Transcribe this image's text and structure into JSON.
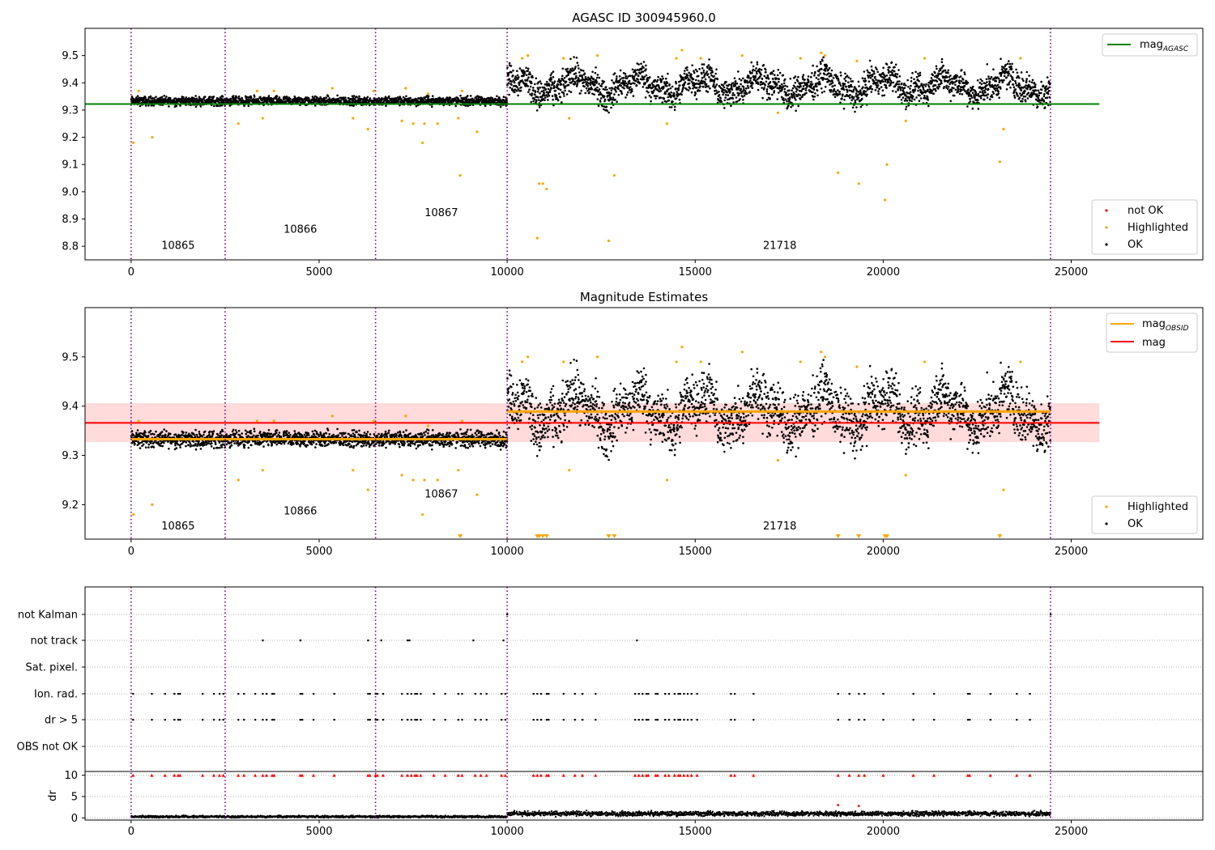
{
  "colors": {
    "ok": "#000000",
    "highlighted": "#ffa500",
    "not_ok": "#ff0000",
    "mag_agasc": "#008000",
    "mag_obsid": "#ffa500",
    "mag": "#ff0000",
    "mag_band": "#ffcccc",
    "obs_boundary": "#800080",
    "grid": "#b0b0b0"
  },
  "chart_data": [
    {
      "type": "scatter",
      "title": "AGASC ID 300945960.0",
      "xlim": [
        -1225,
        28500
      ],
      "ylim": [
        8.75,
        9.6
      ],
      "xticks": [
        0,
        5000,
        10000,
        15000,
        20000,
        25000
      ],
      "yticks": [
        8.8,
        8.9,
        9.0,
        9.1,
        9.2,
        9.3,
        9.4,
        9.5
      ],
      "obs_boundaries": [
        0,
        2500,
        6500,
        10000,
        24450
      ],
      "obsids": [
        {
          "label": "10865",
          "x": 1250,
          "y": 8.79
        },
        {
          "label": "10866",
          "x": 4500,
          "y": 8.85
        },
        {
          "label": "10867",
          "x": 8250,
          "y": 8.91
        },
        {
          "label": "21718",
          "x": 17250,
          "y": 8.79
        }
      ],
      "segments": [
        {
          "x0": 0,
          "x1": 10000,
          "base": 9.333,
          "spread": 0.018
        },
        {
          "x0": 10000,
          "x1": 24450,
          "base": 9.39,
          "spread": 0.06
        }
      ],
      "lines": [
        {
          "name": "mag",
          "sub": "AGASC",
          "y": 9.322,
          "x0": -1225,
          "x1": 25750
        }
      ],
      "legend_lines": [
        {
          "name": "mag",
          "sub": "AGASC"
        }
      ],
      "legend_markers": [
        {
          "name": "not OK"
        },
        {
          "name": "Highlighted"
        },
        {
          "name": "OK"
        }
      ],
      "highlighted": [
        {
          "x": 60,
          "y": 9.18
        },
        {
          "x": 560,
          "y": 9.2
        },
        {
          "x": 2850,
          "y": 9.25
        },
        {
          "x": 3500,
          "y": 9.27
        },
        {
          "x": 5900,
          "y": 9.27
        },
        {
          "x": 6300,
          "y": 9.23
        },
        {
          "x": 7200,
          "y": 9.26
        },
        {
          "x": 7500,
          "y": 9.25
        },
        {
          "x": 7750,
          "y": 9.18
        },
        {
          "x": 7800,
          "y": 9.25
        },
        {
          "x": 8150,
          "y": 9.25
        },
        {
          "x": 8700,
          "y": 9.27
        },
        {
          "x": 8750,
          "y": 9.06
        },
        {
          "x": 9200,
          "y": 9.22
        },
        {
          "x": 10800,
          "y": 8.83
        },
        {
          "x": 10850,
          "y": 9.03
        },
        {
          "x": 10950,
          "y": 9.03
        },
        {
          "x": 11050,
          "y": 9.01
        },
        {
          "x": 11650,
          "y": 9.27
        },
        {
          "x": 12700,
          "y": 8.82
        },
        {
          "x": 12850,
          "y": 9.06
        },
        {
          "x": 14250,
          "y": 9.25
        },
        {
          "x": 17200,
          "y": 9.29
        },
        {
          "x": 18800,
          "y": 9.07
        },
        {
          "x": 19350,
          "y": 9.03
        },
        {
          "x": 20050,
          "y": 8.97
        },
        {
          "x": 20100,
          "y": 9.1
        },
        {
          "x": 20600,
          "y": 9.26
        },
        {
          "x": 23100,
          "y": 9.11
        },
        {
          "x": 23200,
          "y": 9.23
        },
        {
          "x": 200,
          "y": 9.37
        },
        {
          "x": 3350,
          "y": 9.37
        },
        {
          "x": 3800,
          "y": 9.37
        },
        {
          "x": 5350,
          "y": 9.38
        },
        {
          "x": 6450,
          "y": 9.37
        },
        {
          "x": 7300,
          "y": 9.38
        },
        {
          "x": 7900,
          "y": 9.36
        },
        {
          "x": 8800,
          "y": 9.37
        },
        {
          "x": 10400,
          "y": 9.49
        },
        {
          "x": 10550,
          "y": 9.5
        },
        {
          "x": 11500,
          "y": 9.49
        },
        {
          "x": 12400,
          "y": 9.5
        },
        {
          "x": 14500,
          "y": 9.49
        },
        {
          "x": 14650,
          "y": 9.52
        },
        {
          "x": 15150,
          "y": 9.49
        },
        {
          "x": 16250,
          "y": 9.5
        },
        {
          "x": 17800,
          "y": 9.49
        },
        {
          "x": 18350,
          "y": 9.51
        },
        {
          "x": 18450,
          "y": 9.5
        },
        {
          "x": 19300,
          "y": 9.48
        },
        {
          "x": 21100,
          "y": 9.49
        },
        {
          "x": 23650,
          "y": 9.49
        }
      ]
    },
    {
      "type": "scatter",
      "title": "Magnitude Estimates",
      "xlim": [
        -1225,
        28500
      ],
      "ylim": [
        9.13,
        9.6
      ],
      "xticks": [
        0,
        5000,
        10000,
        15000,
        20000,
        25000
      ],
      "yticks": [
        9.2,
        9.3,
        9.4,
        9.5
      ],
      "obs_boundaries": [
        0,
        2500,
        6500,
        10000,
        24450
      ],
      "obsids": [
        {
          "label": "10865",
          "x": 1250,
          "y": 9.15
        },
        {
          "label": "10866",
          "x": 4500,
          "y": 9.18
        },
        {
          "label": "10867",
          "x": 8250,
          "y": 9.215
        },
        {
          "label": "21718",
          "x": 17250,
          "y": 9.15
        }
      ],
      "segments": [
        {
          "x0": 0,
          "x1": 10000,
          "base": 9.333,
          "spread": 0.018
        },
        {
          "x0": 10000,
          "x1": 24450,
          "base": 9.39,
          "spread": 0.06
        }
      ],
      "band": {
        "y0": 9.327,
        "y1": 9.406,
        "x0": -1225,
        "x1": 25750
      },
      "lines": [
        {
          "name": "mag",
          "sub": "OBSID",
          "y": 9.333,
          "x0": 0,
          "x1": 10000,
          "color": "#ffa500"
        },
        {
          "name": "mag",
          "sub": "OBSID",
          "y": 9.389,
          "x0": 10000,
          "x1": 24450,
          "color": "#ffa500"
        },
        {
          "name": "mag",
          "sub": "",
          "y": 9.366,
          "x0": -1225,
          "x1": 25750,
          "color": "#ff0000"
        }
      ],
      "legend_lines": [
        {
          "name": "mag",
          "sub": "OBSID"
        },
        {
          "name": "mag",
          "sub": ""
        }
      ],
      "legend_markers": [
        {
          "name": "Highlighted"
        },
        {
          "name": "OK"
        }
      ],
      "highlighted": [
        {
          "x": 60,
          "y": 9.18
        },
        {
          "x": 560,
          "y": 9.2
        },
        {
          "x": 2850,
          "y": 9.25
        },
        {
          "x": 3500,
          "y": 9.27
        },
        {
          "x": 5900,
          "y": 9.27
        },
        {
          "x": 6300,
          "y": 9.23
        },
        {
          "x": 7200,
          "y": 9.26
        },
        {
          "x": 7500,
          "y": 9.25
        },
        {
          "x": 7750,
          "y": 9.18
        },
        {
          "x": 7800,
          "y": 9.25
        },
        {
          "x": 8150,
          "y": 9.25
        },
        {
          "x": 8700,
          "y": 9.27
        },
        {
          "x": 9200,
          "y": 9.22
        },
        {
          "x": 11650,
          "y": 9.27
        },
        {
          "x": 14250,
          "y": 9.25
        },
        {
          "x": 17200,
          "y": 9.29
        },
        {
          "x": 20600,
          "y": 9.26
        },
        {
          "x": 23200,
          "y": 9.23
        },
        {
          "x": 200,
          "y": 9.37
        },
        {
          "x": 3350,
          "y": 9.37
        },
        {
          "x": 3800,
          "y": 9.37
        },
        {
          "x": 5350,
          "y": 9.38
        },
        {
          "x": 6450,
          "y": 9.37
        },
        {
          "x": 7300,
          "y": 9.38
        },
        {
          "x": 7900,
          "y": 9.36
        },
        {
          "x": 8800,
          "y": 9.37
        },
        {
          "x": 10400,
          "y": 9.49
        },
        {
          "x": 10550,
          "y": 9.5
        },
        {
          "x": 11500,
          "y": 9.49
        },
        {
          "x": 12400,
          "y": 9.5
        },
        {
          "x": 14500,
          "y": 9.49
        },
        {
          "x": 14650,
          "y": 9.52
        },
        {
          "x": 15150,
          "y": 9.49
        },
        {
          "x": 16250,
          "y": 9.51
        },
        {
          "x": 17800,
          "y": 9.49
        },
        {
          "x": 18350,
          "y": 9.51
        },
        {
          "x": 18450,
          "y": 9.5
        },
        {
          "x": 19300,
          "y": 9.48
        },
        {
          "x": 21100,
          "y": 9.49
        },
        {
          "x": 23650,
          "y": 9.49
        }
      ],
      "below_range": [
        8750,
        10800,
        10850,
        10950,
        11050,
        12700,
        12850,
        18800,
        19350,
        20050,
        20100,
        23100
      ]
    },
    {
      "type": "scatter",
      "title": "",
      "xlim": [
        -1225,
        28500
      ],
      "xticks": [
        0,
        5000,
        10000,
        15000,
        20000,
        25000
      ],
      "obs_boundaries": [
        0,
        2500,
        6500,
        10000,
        24450
      ],
      "flag_categories": [
        "not Kalman",
        "not track",
        "Sat. pixel.",
        "Ion. rad.",
        "dr > 5",
        "OBS not OK"
      ],
      "flags": {
        "not Kalman": [
          10000,
          24450
        ],
        "not track": [
          3500,
          4500,
          6300,
          6650,
          7350,
          7400,
          9100,
          9900,
          13450
        ],
        "Sat. pixel.": [],
        "Ion. rad.": [
          50,
          550,
          900,
          1150,
          1250,
          1300,
          1900,
          2200,
          2350,
          2450,
          2850,
          3000,
          3300,
          3500,
          3600,
          3750,
          3800,
          4500,
          4550,
          4850,
          5400,
          6300,
          6350,
          6500,
          6550,
          6700,
          7200,
          7350,
          7450,
          7550,
          7600,
          7700,
          8050,
          8350,
          8700,
          8800,
          9150,
          9300,
          9450,
          9850,
          9950,
          10700,
          10800,
          10900,
          11050,
          11100,
          11500,
          11800,
          12000,
          12350,
          13400,
          13500,
          13600,
          13700,
          13750,
          13950,
          14000,
          14200,
          14300,
          14450,
          14550,
          14600,
          14700,
          14800,
          14900,
          15050,
          15950,
          16050,
          16550,
          18800,
          19100,
          19350,
          19500,
          20000,
          20800,
          21350,
          22250,
          22300,
          22850,
          23550,
          23900
        ],
        "dr > 5": [
          50,
          550,
          900,
          1150,
          1250,
          1300,
          1900,
          2200,
          2350,
          2450,
          2850,
          3000,
          3300,
          3500,
          3600,
          3750,
          3800,
          4500,
          4550,
          4850,
          5400,
          6300,
          6350,
          6500,
          6550,
          6700,
          7200,
          7350,
          7450,
          7550,
          7600,
          7700,
          8050,
          8350,
          8700,
          8800,
          9150,
          9300,
          9450,
          9850,
          9950,
          10700,
          10800,
          10900,
          11050,
          11100,
          11500,
          11800,
          12000,
          12350,
          13400,
          13500,
          13600,
          13700,
          13750,
          13950,
          14000,
          14200,
          14300,
          14450,
          14550,
          14600,
          14700,
          14800,
          14900,
          15050,
          15950,
          16050,
          16550,
          18800,
          19100,
          19350,
          19500,
          20000,
          20800,
          21350,
          22250,
          22300,
          22850,
          23550,
          23900
        ],
        "OBS not OK": []
      },
      "ylabel": "dr",
      "dr_ylim": [
        -0.5,
        10.5
      ],
      "dr_yticks": [
        0,
        5,
        10
      ],
      "dr_clipped": [
        50,
        550,
        900,
        1150,
        1250,
        1300,
        1900,
        2200,
        2350,
        2450,
        2850,
        3000,
        3300,
        3500,
        3600,
        3750,
        3800,
        4500,
        4550,
        4850,
        5400,
        6300,
        6350,
        6500,
        6550,
        6700,
        7200,
        7350,
        7450,
        7550,
        7600,
        7700,
        8050,
        8350,
        8700,
        8800,
        9150,
        9300,
        9450,
        9850,
        9950,
        10700,
        10800,
        10900,
        11050,
        11100,
        11500,
        11800,
        12000,
        12350,
        13400,
        13500,
        13600,
        13700,
        13750,
        13950,
        14000,
        14200,
        14300,
        14450,
        14550,
        14600,
        14700,
        14800,
        14900,
        15050,
        15950,
        16050,
        16550,
        18800,
        19100,
        19350,
        19500,
        20000,
        20800,
        21350,
        22250,
        22300,
        22850,
        23550,
        23900
      ],
      "dr_outliers": [
        {
          "x": 18800,
          "y": 3
        },
        {
          "x": 19350,
          "y": 2.8
        }
      ],
      "dr_segments": [
        {
          "x0": 0,
          "x1": 10000,
          "base": 0.3,
          "spread": 0.25
        },
        {
          "x0": 10000,
          "x1": 24450,
          "base": 1.0,
          "spread": 0.6
        }
      ]
    }
  ],
  "legends": {
    "top": {
      "mag_label": "mag",
      "mag_sub": "AGASC",
      "not_ok": "not OK",
      "highlighted": "Highlighted",
      "ok": "OK"
    },
    "middle": {
      "obsid_label": "mag",
      "obsid_sub": "OBSID",
      "mag_label": "mag",
      "highlighted": "Highlighted",
      "ok": "OK"
    }
  }
}
